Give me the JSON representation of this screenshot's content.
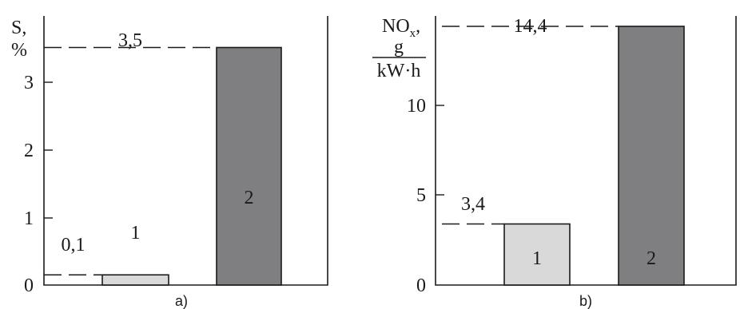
{
  "colors": {
    "bar_light": "#d9d9d9",
    "bar_dark": "#7f7f82",
    "axis": "#1a1a1a",
    "background": "#ffffff"
  },
  "chart_data": [
    {
      "type": "bar",
      "panel_label": "a)",
      "ylabel_top": "S,",
      "ylabel_unit": "%",
      "ylim": [
        0,
        3.5
      ],
      "yticks": [
        "0",
        "1",
        "2",
        "3"
      ],
      "categories": [
        "1",
        "2"
      ],
      "values": [
        0.15,
        3.5
      ],
      "value_labels": [
        "0,1",
        "3,5"
      ],
      "grid": false
    },
    {
      "type": "bar",
      "panel_label": "b)",
      "ylabel_top": "NO",
      "ylabel_sub": "x",
      "ylabel_comma": ",",
      "ylabel_num": "g",
      "ylabel_den": "kW·h",
      "ylim": [
        0,
        14.4
      ],
      "yticks": [
        "0",
        "5",
        "10"
      ],
      "categories": [
        "1",
        "2"
      ],
      "values": [
        3.4,
        14.4
      ],
      "value_labels": [
        "3,4",
        "14,4"
      ],
      "grid": false
    }
  ]
}
